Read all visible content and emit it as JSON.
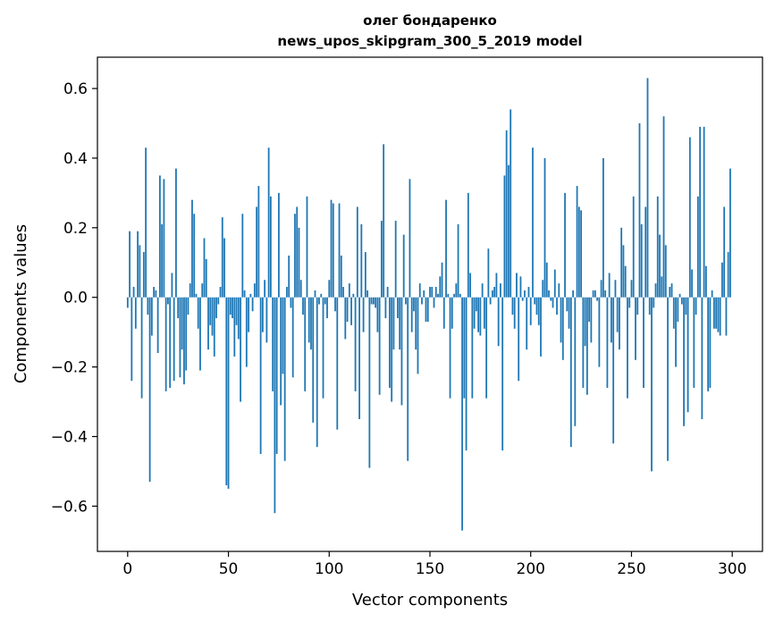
{
  "chart_data": {
    "type": "bar",
    "title_line1": "олег бондаренко",
    "title_line2": "news_upos_skipgram_300_5_2019 model",
    "xlabel": "Vector components",
    "ylabel": "Components values",
    "xlim": [
      -15,
      315
    ],
    "ylim": [
      -0.73,
      0.69
    ],
    "x_ticks": [
      0,
      50,
      100,
      150,
      200,
      250,
      300
    ],
    "x_tick_labels": [
      "0",
      "50",
      "100",
      "150",
      "200",
      "250",
      "300"
    ],
    "y_ticks": [
      -0.6,
      -0.4,
      -0.2,
      0.0,
      0.2,
      0.4,
      0.6
    ],
    "y_tick_labels": [
      "−0.6",
      "−0.4",
      "−0.2",
      "0.0",
      "0.2",
      "0.4",
      "0.6"
    ],
    "bar_color": "#1f77b4",
    "values": [
      -0.03,
      0.19,
      -0.24,
      0.03,
      -0.09,
      0.19,
      0.15,
      -0.29,
      0.13,
      0.43,
      -0.05,
      -0.53,
      -0.11,
      0.03,
      0.02,
      -0.16,
      0.35,
      0.21,
      0.34,
      -0.27,
      -0.02,
      -0.26,
      0.07,
      -0.24,
      0.37,
      -0.06,
      -0.23,
      -0.15,
      -0.25,
      -0.21,
      -0.05,
      0.04,
      0.28,
      0.24,
      0.01,
      -0.09,
      -0.21,
      0.04,
      0.17,
      0.11,
      -0.15,
      -0.08,
      -0.11,
      -0.17,
      -0.06,
      -0.02,
      0.03,
      0.23,
      0.17,
      -0.54,
      -0.55,
      -0.05,
      -0.06,
      -0.17,
      -0.08,
      -0.12,
      -0.3,
      0.24,
      0.02,
      -0.2,
      -0.1,
      0.01,
      -0.04,
      0.04,
      0.26,
      0.32,
      -0.45,
      -0.1,
      0.05,
      -0.13,
      0.43,
      0.29,
      -0.27,
      -0.62,
      -0.45,
      0.3,
      -0.31,
      -0.22,
      -0.47,
      0.03,
      0.12,
      -0.03,
      -0.23,
      0.24,
      0.26,
      0.2,
      0.05,
      -0.05,
      -0.27,
      0.29,
      -0.13,
      -0.15,
      -0.36,
      0.02,
      -0.43,
      -0.02,
      0.01,
      -0.29,
      -0.02,
      -0.06,
      0.05,
      0.28,
      0.27,
      -0.04,
      -0.38,
      0.27,
      0.12,
      0.03,
      -0.12,
      -0.07,
      0.04,
      -0.08,
      0.01,
      -0.27,
      0.26,
      -0.35,
      0.21,
      -0.1,
      0.13,
      0.02,
      -0.49,
      -0.02,
      -0.02,
      -0.03,
      -0.1,
      -0.28,
      0.22,
      0.44,
      -0.06,
      0.03,
      -0.26,
      -0.3,
      -0.15,
      0.22,
      -0.06,
      -0.15,
      -0.31,
      0.18,
      -0.02,
      -0.47,
      0.34,
      -0.1,
      -0.04,
      -0.15,
      -0.22,
      0.04,
      -0.02,
      0.02,
      -0.07,
      -0.07,
      0.03,
      0.03,
      -0.03,
      0.03,
      0.01,
      0.06,
      0.1,
      -0.09,
      0.28,
      0.01,
      -0.29,
      -0.09,
      0.01,
      0.04,
      0.21,
      0.01,
      -0.67,
      -0.29,
      -0.44,
      0.3,
      0.07,
      -0.29,
      -0.09,
      -0.04,
      -0.1,
      -0.11,
      0.04,
      -0.09,
      -0.29,
      0.14,
      -0.02,
      0.02,
      0.03,
      0.07,
      -0.14,
      0.04,
      -0.44,
      0.35,
      0.48,
      0.38,
      0.54,
      -0.05,
      -0.09,
      0.07,
      -0.24,
      0.06,
      -0.01,
      0.02,
      -0.15,
      0.03,
      -0.08,
      0.43,
      -0.02,
      -0.05,
      -0.08,
      -0.17,
      0.05,
      0.4,
      0.1,
      0.02,
      -0.01,
      -0.03,
      0.08,
      -0.05,
      0.04,
      -0.13,
      -0.18,
      0.3,
      -0.04,
      -0.09,
      -0.43,
      0.02,
      -0.37,
      0.32,
      0.26,
      0.25,
      -0.26,
      -0.14,
      -0.28,
      -0.07,
      -0.13,
      0.02,
      0.02,
      -0.01,
      -0.2,
      0.05,
      0.4,
      0.02,
      -0.26,
      0.07,
      -0.13,
      -0.42,
      0.05,
      -0.1,
      -0.15,
      0.2,
      0.15,
      0.09,
      -0.29,
      -0.03,
      0.05,
      0.29,
      -0.18,
      -0.05,
      0.5,
      0.21,
      -0.26,
      0.26,
      0.63,
      -0.05,
      -0.5,
      -0.03,
      0.04,
      0.29,
      0.18,
      0.06,
      0.52,
      0.15,
      -0.47,
      0.03,
      0.04,
      -0.09,
      -0.2,
      -0.07,
      0.01,
      -0.02,
      -0.37,
      -0.05,
      -0.33,
      0.46,
      0.08,
      -0.26,
      -0.05,
      0.29,
      0.49,
      -0.35,
      0.49,
      0.09,
      -0.27,
      -0.26,
      0.02,
      -0.09,
      -0.09,
      -0.1,
      -0.11,
      0.1,
      0.26,
      -0.11,
      0.13,
      0.37
    ]
  }
}
